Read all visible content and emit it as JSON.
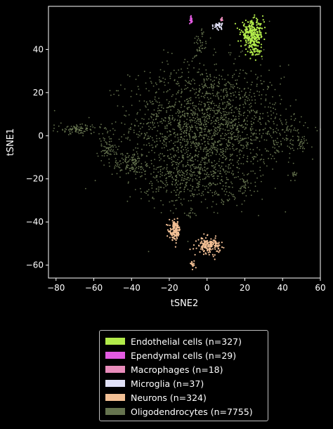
{
  "chart_data": {
    "type": "scatter",
    "xlabel": "tSNE2",
    "ylabel": "tSNE1",
    "xlim": [
      -84,
      60
    ],
    "ylim": [
      -66,
      60
    ],
    "xticks": [
      -80,
      -60,
      -40,
      -20,
      0,
      20,
      40,
      60
    ],
    "yticks": [
      -60,
      -40,
      -20,
      0,
      20,
      40
    ],
    "xtick_labels": [
      "−80",
      "−60",
      "−40",
      "−20",
      "0",
      "20",
      "40",
      "60"
    ],
    "ytick_labels": [
      "−60",
      "−40",
      "−20",
      "0",
      "20",
      "40"
    ],
    "grid": false,
    "legend_position": "below",
    "series": [
      {
        "name": "Endothelial cells (n=327)",
        "color": "#b2eb4a",
        "n": 327,
        "clusters": [
          {
            "cx": 24,
            "cy": 47,
            "sx": 3,
            "sy": 3,
            "weight": 0.9
          },
          {
            "cx": 25,
            "cy": 39,
            "sx": 2,
            "sy": 1.5,
            "weight": 0.1
          }
        ]
      },
      {
        "name": "Ependymal cells (n=29)",
        "color": "#e35be2",
        "n": 29,
        "clusters": [
          {
            "cx": -8.5,
            "cy": 54,
            "sx": 0.3,
            "sy": 0.8,
            "weight": 1
          }
        ]
      },
      {
        "name": "Macrophages (n=18)",
        "color": "#e88cbb",
        "n": 18,
        "clusters": [
          {
            "cx": 7.5,
            "cy": 54,
            "sx": 0.4,
            "sy": 0.4,
            "weight": 1
          }
        ]
      },
      {
        "name": "Microglia (n=37)",
        "color": "#e1e1f7",
        "n": 37,
        "clusters": [
          {
            "cx": 6,
            "cy": 51,
            "sx": 1.2,
            "sy": 0.8,
            "weight": 1
          }
        ]
      },
      {
        "name": "Neurons (n=324)",
        "color": "#f3c095",
        "n": 324,
        "clusters": [
          {
            "cx": -17,
            "cy": -44,
            "sx": 1.5,
            "sy": 2.2,
            "weight": 0.45
          },
          {
            "cx": 1,
            "cy": -51,
            "sx": 3,
            "sy": 1.8,
            "weight": 0.5
          },
          {
            "cx": -7.5,
            "cy": -59.5,
            "sx": 0.6,
            "sy": 0.8,
            "weight": 0.05
          }
        ]
      },
      {
        "name": "Oligodendrocytes (n=7755)",
        "color": "#66744f",
        "n": 7755,
        "clusters": [
          {
            "cx": 0,
            "cy": 5,
            "sx": 20,
            "sy": 14,
            "weight": 0.68
          },
          {
            "cx": -10,
            "cy": -20,
            "sx": 12,
            "sy": 6,
            "weight": 0.12
          },
          {
            "cx": -40,
            "cy": -13,
            "sx": 5,
            "sy": 3,
            "weight": 0.05
          },
          {
            "cx": -53,
            "cy": -6,
            "sx": 2.5,
            "sy": 3,
            "weight": 0.025
          },
          {
            "cx": -68,
            "cy": 3,
            "sx": 6,
            "sy": 1.2,
            "weight": 0.04
          },
          {
            "cx": -4,
            "cy": 42,
            "sx": 2,
            "sy": 3.5,
            "weight": 0.015
          },
          {
            "cx": 40,
            "cy": 0,
            "sx": 6,
            "sy": 5,
            "weight": 0.03
          },
          {
            "cx": 50,
            "cy": -3,
            "sx": 2,
            "sy": 1.5,
            "weight": 0.01
          },
          {
            "cx": 46,
            "cy": -18,
            "sx": 1.5,
            "sy": 1.5,
            "weight": 0.005
          },
          {
            "cx": 20,
            "cy": -24,
            "sx": 3,
            "sy": 3,
            "weight": 0.01
          },
          {
            "cx": 10,
            "cy": -28,
            "sx": 4,
            "sy": 3,
            "weight": 0.01
          },
          {
            "cx": -8,
            "cy": -36,
            "sx": 1.8,
            "sy": 1.5,
            "weight": 0.005
          }
        ]
      }
    ]
  }
}
